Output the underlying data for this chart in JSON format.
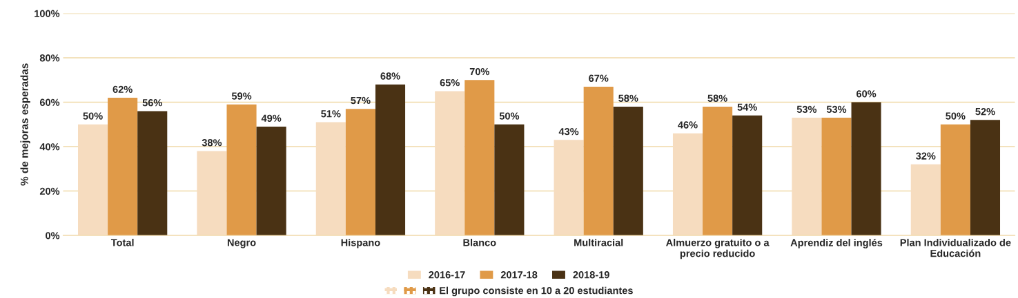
{
  "chart_data": {
    "type": "bar",
    "ylabel": "% de mejoras esperadas",
    "categories": [
      "Total",
      "Negro",
      "Hispano",
      "Blanco",
      "Multiracial",
      "Almuerzo gratuito o a precio reducido",
      "Aprendiz del inglés",
      "Plan Individualizado de Educación"
    ],
    "series": [
      {
        "name": "2016-17",
        "color": "#f6dcbf",
        "values": [
          50,
          38,
          51,
          65,
          43,
          46,
          53,
          32
        ],
        "value_labels": [
          "50%",
          "38%",
          "51%",
          "65%",
          "43%",
          "46%",
          "53%",
          "32%"
        ]
      },
      {
        "name": "2017-18",
        "color": "#e09a48",
        "values": [
          62,
          59,
          57,
          70,
          67,
          58,
          53,
          50
        ],
        "value_labels": [
          "62%",
          "59%",
          "57%",
          "70%",
          "67%",
          "58%",
          "53%",
          "50%"
        ]
      },
      {
        "name": "2018-19",
        "color": "#4a3214",
        "values": [
          56,
          49,
          68,
          50,
          58,
          54,
          60,
          52
        ],
        "value_labels": [
          "56%",
          "49%",
          "68%",
          "50%",
          "58%",
          "54%",
          "60%",
          "52%"
        ]
      }
    ],
    "ylim": [
      0,
      100
    ],
    "yticks": [
      {
        "value": 0,
        "label": "0%"
      },
      {
        "value": 20,
        "label": "20%"
      },
      {
        "value": 40,
        "label": "40%"
      },
      {
        "value": 60,
        "label": "60%"
      },
      {
        "value": 80,
        "label": "80%"
      },
      {
        "value": 100,
        "label": "100%"
      }
    ],
    "grid": "y",
    "legend": "bottom",
    "annotations": [
      "El grupo consiste en 10 a 20 estudiantes"
    ]
  }
}
